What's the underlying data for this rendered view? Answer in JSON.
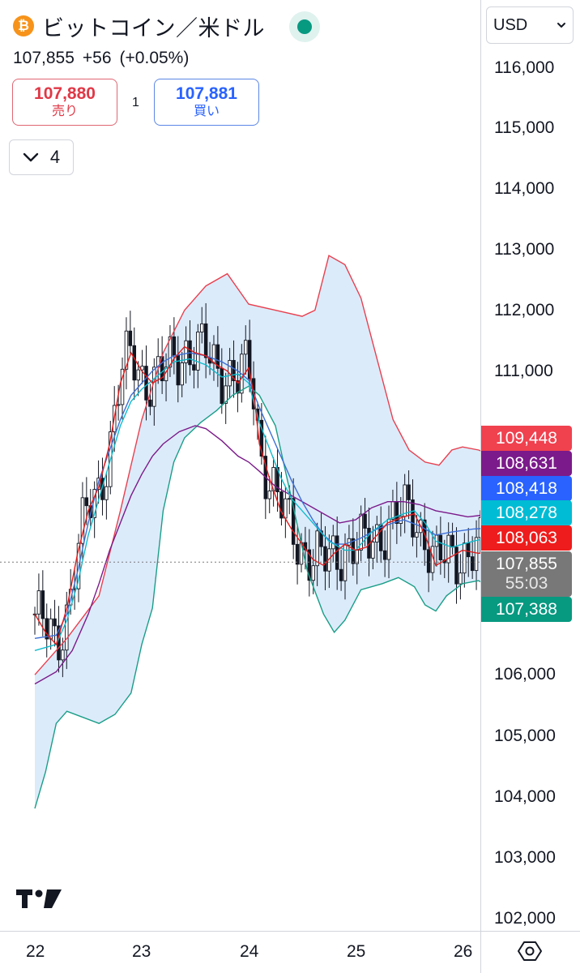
{
  "header": {
    "symbol": "ビットコイン／米ドル",
    "coin_glyph": "₿",
    "price": "107,855",
    "change": "+56",
    "change_pct": "(+0.05%)"
  },
  "sell": {
    "price": "107,880",
    "label": "売り"
  },
  "buy": {
    "price": "107,881",
    "label": "買い"
  },
  "spread": "1",
  "indicators_toggle": {
    "count": "4"
  },
  "currency_select": {
    "value": "USD"
  },
  "colors": {
    "bb_fill": "#dcebfa",
    "bb_upper": "#e8404f",
    "bb_lower": "#1a9e88",
    "ma_red": "#e01c1c",
    "ma_cyan": "#11bbcc",
    "ma_blue": "#3d6fd6",
    "ma_purple": "#7b1a8a",
    "candle": "#131722"
  },
  "chart_data": {
    "type": "line",
    "ylim": [
      102000,
      116500
    ],
    "y_ticks": [
      "116,000",
      "115,000",
      "114,000",
      "113,000",
      "112,000",
      "111,000",
      "106,000",
      "105,000",
      "104,000",
      "103,000",
      "102,000"
    ],
    "x_ticks": [
      "22",
      "23",
      "24",
      "25",
      "26"
    ],
    "current_price": 107855,
    "countdown": "55:03",
    "price_tags": [
      {
        "value": "109,448",
        "color": "#f0414f"
      },
      {
        "value": "108,631",
        "color": "#7b1a8a"
      },
      {
        "value": "108,418",
        "color": "#2962ff"
      },
      {
        "value": "108,278",
        "color": "#00bcd4"
      },
      {
        "value": "108,063",
        "color": "#ee1c1c"
      },
      {
        "value": "107,855",
        "color": "#787878",
        "sub": "55:03"
      },
      {
        "value": "107,388",
        "color": "#089981"
      }
    ],
    "series": {
      "bb_upper": [
        [
          0,
          106000
        ],
        [
          0.3,
          106600
        ],
        [
          0.6,
          107300
        ],
        [
          0.8,
          108700
        ],
        [
          1.0,
          110200
        ],
        [
          1.2,
          111300
        ],
        [
          1.4,
          112000
        ],
        [
          1.6,
          112400
        ],
        [
          1.8,
          112600
        ],
        [
          2.0,
          112100
        ],
        [
          2.25,
          112000
        ],
        [
          2.5,
          111900
        ],
        [
          2.62,
          112000
        ],
        [
          2.75,
          112900
        ],
        [
          2.9,
          112750
        ],
        [
          3.05,
          112200
        ],
        [
          3.2,
          111200
        ],
        [
          3.35,
          110200
        ],
        [
          3.5,
          109700
        ],
        [
          3.65,
          109500
        ],
        [
          3.78,
          109450
        ],
        [
          3.9,
          109700
        ],
        [
          4.0,
          109750
        ],
        [
          4.15,
          109700
        ],
        [
          4.3,
          109600
        ],
        [
          4.46,
          109448
        ]
      ],
      "bb_lower": [
        [
          0,
          103800
        ],
        [
          0.1,
          104400
        ],
        [
          0.2,
          105200
        ],
        [
          0.3,
          105400
        ],
        [
          0.45,
          105300
        ],
        [
          0.6,
          105200
        ],
        [
          0.75,
          105350
        ],
        [
          0.9,
          105700
        ],
        [
          1.0,
          106500
        ],
        [
          1.1,
          107100
        ],
        [
          1.2,
          108700
        ],
        [
          1.3,
          109500
        ],
        [
          1.4,
          109900
        ],
        [
          1.55,
          110150
        ],
        [
          1.7,
          110350
        ],
        [
          1.85,
          110600
        ],
        [
          2.0,
          110750
        ],
        [
          2.1,
          110600
        ],
        [
          2.25,
          110100
        ],
        [
          2.4,
          108900
        ],
        [
          2.55,
          107700
        ],
        [
          2.7,
          107000
        ],
        [
          2.8,
          106700
        ],
        [
          2.9,
          106900
        ],
        [
          3.05,
          107400
        ],
        [
          3.25,
          107500
        ],
        [
          3.4,
          107600
        ],
        [
          3.55,
          107450
        ],
        [
          3.65,
          107150
        ],
        [
          3.75,
          107050
        ],
        [
          3.85,
          107300
        ],
        [
          4.0,
          107500
        ],
        [
          4.15,
          107550
        ],
        [
          4.3,
          107400
        ],
        [
          4.46,
          107388
        ]
      ],
      "ma_red": [
        [
          0,
          107000
        ],
        [
          0.1,
          106700
        ],
        [
          0.2,
          106500
        ],
        [
          0.3,
          107100
        ],
        [
          0.4,
          108000
        ],
        [
          0.5,
          108700
        ],
        [
          0.6,
          109100
        ],
        [
          0.7,
          109800
        ],
        [
          0.8,
          110800
        ],
        [
          0.9,
          111300
        ],
        [
          1.0,
          111000
        ],
        [
          1.1,
          110800
        ],
        [
          1.2,
          110900
        ],
        [
          1.3,
          111200
        ],
        [
          1.4,
          111400
        ],
        [
          1.5,
          111300
        ],
        [
          1.6,
          111250
        ],
        [
          1.7,
          111100
        ],
        [
          1.8,
          111000
        ],
        [
          1.9,
          110800
        ],
        [
          2.0,
          111050
        ],
        [
          2.05,
          110600
        ],
        [
          2.1,
          109800
        ],
        [
          2.2,
          109200
        ],
        [
          2.3,
          108700
        ],
        [
          2.4,
          108400
        ],
        [
          2.5,
          108150
        ],
        [
          2.6,
          107900
        ],
        [
          2.7,
          107800
        ],
        [
          2.8,
          108000
        ],
        [
          2.9,
          108150
        ],
        [
          3.0,
          108050
        ],
        [
          3.1,
          108100
        ],
        [
          3.2,
          108300
        ],
        [
          3.3,
          108500
        ],
        [
          3.45,
          108600
        ],
        [
          3.55,
          108650
        ],
        [
          3.65,
          108300
        ],
        [
          3.75,
          107800
        ],
        [
          3.85,
          107900
        ],
        [
          4.0,
          108050
        ],
        [
          4.15,
          108000
        ],
        [
          4.3,
          108063
        ]
      ],
      "ma_cyan": [
        [
          0,
          106400
        ],
        [
          0.2,
          106500
        ],
        [
          0.3,
          106900
        ],
        [
          0.4,
          107500
        ],
        [
          0.5,
          108300
        ],
        [
          0.6,
          108900
        ],
        [
          0.7,
          109500
        ],
        [
          0.8,
          110100
        ],
        [
          0.9,
          110500
        ],
        [
          1.0,
          110700
        ],
        [
          1.1,
          110850
        ],
        [
          1.2,
          111000
        ],
        [
          1.3,
          111150
        ],
        [
          1.45,
          111200
        ],
        [
          1.6,
          111100
        ],
        [
          1.75,
          110900
        ],
        [
          1.9,
          110950
        ],
        [
          2.0,
          110800
        ],
        [
          2.1,
          110150
        ],
        [
          2.2,
          109700
        ],
        [
          2.3,
          109250
        ],
        [
          2.4,
          108900
        ],
        [
          2.5,
          108700
        ],
        [
          2.6,
          108500
        ],
        [
          2.75,
          108200
        ],
        [
          2.9,
          108050
        ],
        [
          3.0,
          108050
        ],
        [
          3.15,
          108350
        ],
        [
          3.3,
          108550
        ],
        [
          3.45,
          108650
        ],
        [
          3.55,
          108700
        ],
        [
          3.65,
          108500
        ],
        [
          3.75,
          108200
        ],
        [
          3.9,
          108100
        ],
        [
          4.1,
          108200
        ],
        [
          4.3,
          108278
        ]
      ],
      "ma_blue": [
        [
          0,
          106600
        ],
        [
          0.2,
          106650
        ],
        [
          0.3,
          107000
        ],
        [
          0.4,
          107700
        ],
        [
          0.5,
          108500
        ],
        [
          0.6,
          109200
        ],
        [
          0.7,
          109700
        ],
        [
          0.8,
          110200
        ],
        [
          0.9,
          110600
        ],
        [
          1.0,
          110800
        ],
        [
          1.1,
          111000
        ],
        [
          1.2,
          111150
        ],
        [
          1.3,
          111250
        ],
        [
          1.45,
          111300
        ],
        [
          1.6,
          111250
        ],
        [
          1.75,
          111150
        ],
        [
          1.9,
          111000
        ],
        [
          2.0,
          110850
        ],
        [
          2.1,
          110400
        ],
        [
          2.2,
          110000
        ],
        [
          2.3,
          109600
        ],
        [
          2.4,
          109200
        ],
        [
          2.5,
          108850
        ],
        [
          2.6,
          108550
        ],
        [
          2.7,
          108300
        ],
        [
          2.8,
          108150
        ],
        [
          2.9,
          108150
        ],
        [
          3.05,
          108250
        ],
        [
          3.2,
          108400
        ],
        [
          3.35,
          108500
        ],
        [
          3.45,
          108550
        ],
        [
          3.6,
          108450
        ],
        [
          3.75,
          108300
        ],
        [
          3.9,
          108350
        ],
        [
          4.1,
          108400
        ],
        [
          4.3,
          108418
        ]
      ],
      "ma_purple": [
        [
          0,
          105850
        ],
        [
          0.2,
          106050
        ],
        [
          0.35,
          106400
        ],
        [
          0.5,
          107000
        ],
        [
          0.6,
          107500
        ],
        [
          0.7,
          108050
        ],
        [
          0.8,
          108500
        ],
        [
          0.9,
          108950
        ],
        [
          1.0,
          109300
        ],
        [
          1.1,
          109600
        ],
        [
          1.2,
          109800
        ],
        [
          1.35,
          110000
        ],
        [
          1.5,
          110100
        ],
        [
          1.6,
          110050
        ],
        [
          1.75,
          109850
        ],
        [
          1.9,
          109600
        ],
        [
          2.0,
          109500
        ],
        [
          2.1,
          109350
        ],
        [
          2.25,
          109100
        ],
        [
          2.4,
          108950
        ],
        [
          2.55,
          108800
        ],
        [
          2.7,
          108650
        ],
        [
          2.85,
          108500
        ],
        [
          3.0,
          108550
        ],
        [
          3.15,
          108750
        ],
        [
          3.3,
          108850
        ],
        [
          3.45,
          108850
        ],
        [
          3.6,
          108800
        ],
        [
          3.75,
          108700
        ],
        [
          3.9,
          108650
        ],
        [
          4.05,
          108600
        ],
        [
          4.2,
          108631
        ]
      ]
    }
  }
}
